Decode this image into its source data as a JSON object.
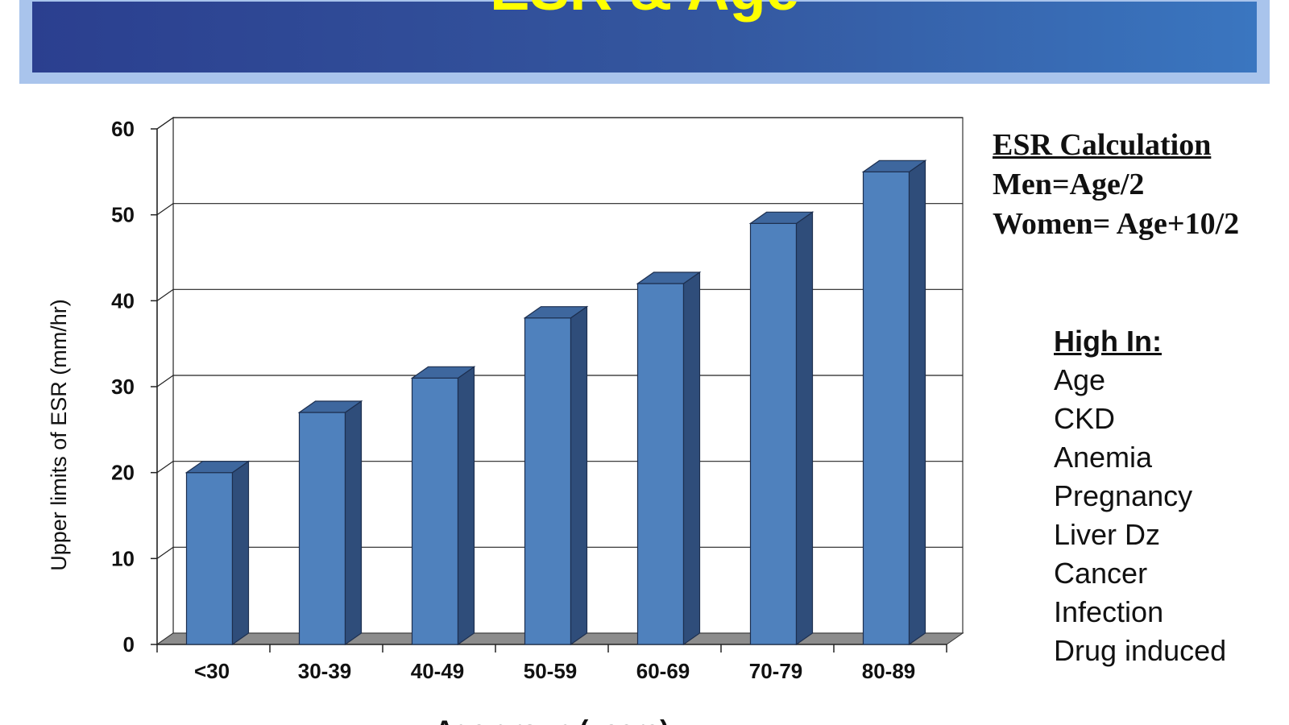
{
  "slide": {
    "title": "ESR & Age"
  },
  "chart_data": {
    "type": "bar",
    "categories": [
      "<30",
      "30-39",
      "40-49",
      "50-59",
      "60-69",
      "70-79",
      "80-89"
    ],
    "values": [
      20,
      27,
      31,
      38,
      42,
      49,
      55
    ],
    "title": "",
    "xlabel": "Age group (years)",
    "ylabel": "Upper limits of ESR (mm/hr)",
    "ylim": [
      0,
      60
    ],
    "yticks": [
      "0",
      "10",
      "20",
      "30",
      "40",
      "50",
      "60"
    ],
    "grid": true,
    "bar_color": "#4f81bd",
    "bar_side_color": "#2f4d7a",
    "bar_top_color": "#3e679e"
  },
  "esr_calculation": {
    "heading": "ESR Calculation",
    "men": "Men=Age/2",
    "women": "Women= Age+10/2"
  },
  "high_in": {
    "heading": "High In:",
    "items": [
      "Age",
      "CKD",
      "Anemia",
      "Pregnancy",
      "Liver Dz",
      "Cancer",
      "Infection",
      "Drug induced"
    ]
  }
}
